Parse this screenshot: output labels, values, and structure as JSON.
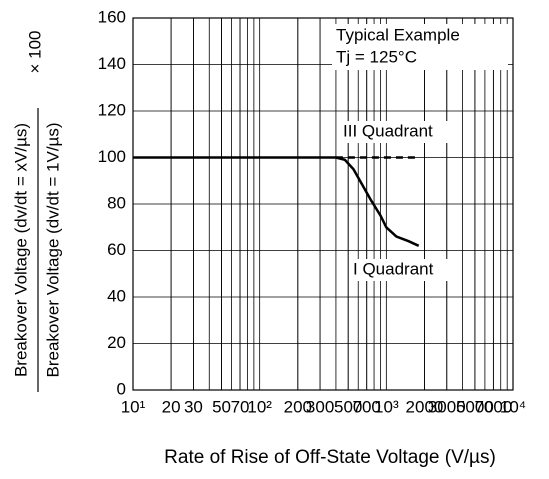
{
  "chart_data": {
    "type": "line",
    "xlabel": "Rate of Rise of Off-State Voltage  (V/µs)",
    "ylabel_numerator": "Breakover Voltage  (dv/dt = xV/µs)",
    "ylabel_denominator": "Breakover Voltage  (dv/dt = 1V/µs)",
    "ylabel_multiplier": "× 100",
    "annotations": [
      "Typical Example",
      "Tj = 125°C"
    ],
    "xscale": "log",
    "grid": true,
    "minor_grid": true,
    "xlim": [
      10,
      10000
    ],
    "ylim": [
      0,
      160
    ],
    "yticks": [
      0,
      20,
      40,
      60,
      80,
      100,
      120,
      140,
      160
    ],
    "xticks": [
      {
        "value": 10,
        "label": "10¹"
      },
      20,
      30,
      50,
      70,
      {
        "value": 100,
        "label": "10²"
      },
      200,
      300,
      500,
      700,
      {
        "value": 1000,
        "label": "10³"
      },
      2000,
      3000,
      5000,
      7000,
      {
        "value": 10000,
        "label": "10⁴"
      }
    ],
    "series": [
      {
        "name": "I Quadrant",
        "color": "#000000",
        "dash": false,
        "x": [
          10,
          100,
          300,
          400,
          470,
          550,
          650,
          750,
          900,
          1000,
          1200,
          1500,
          1800
        ],
        "values": [
          100,
          100,
          100,
          100,
          99,
          95,
          88,
          82,
          75,
          70,
          66,
          64,
          62
        ]
      },
      {
        "name": "III Quadrant",
        "color": "#000000",
        "dash": true,
        "x": [
          400,
          1800
        ],
        "values": [
          100,
          100
        ]
      }
    ]
  }
}
